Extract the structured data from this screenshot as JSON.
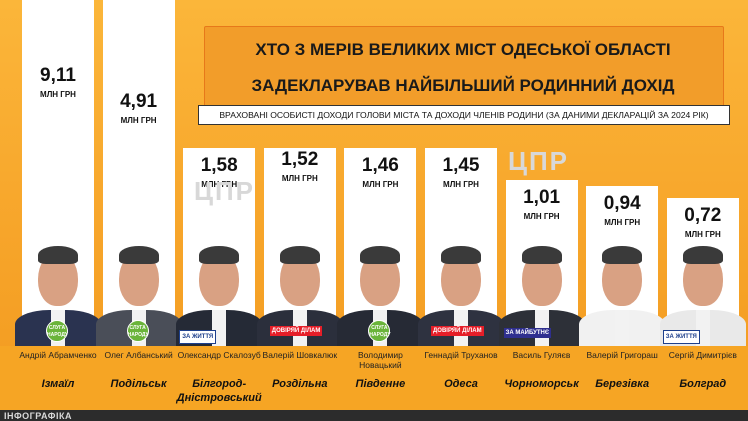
{
  "header": {
    "title_line1": "ХТО З МЕРІВ ВЕЛИКИХ МІСТ ОДЕСЬКОЇ ОБЛАСТІ",
    "title_line2": "ЗАДЕКЛАРУВАВ НАЙБІЛЬШИЙ РОДИННИЙ ДОХІД",
    "subtitle": "ВРАХОВАНІ ОСОБИСТІ ДОХОДИ ГОЛОВИ МІСТА ТА ДОХОДИ ЧЛЕНІВ РОДИНИ (ЗА ДАНИМИ ДЕКЛАРАЦІЙ ЗА 2024 РІК)"
  },
  "credit": "ІНФОГРАФІКА",
  "watermark": "ЦПР",
  "colors": {
    "bar": "#ffffff",
    "background": "#f5a623",
    "title_border": "#e7781a"
  },
  "chart_data": {
    "type": "bar",
    "unit": "МЛН ГРН",
    "categories": [
      "Ізмаїл",
      "Подільськ",
      "Білгород-Дністровський",
      "Роздільна",
      "Південне",
      "Одеса",
      "Чорноморськ",
      "Березівка",
      "Болград"
    ],
    "values": [
      9.11,
      4.91,
      1.58,
      1.52,
      1.46,
      1.45,
      1.01,
      0.94,
      0.72
    ],
    "value_labels": [
      "9,11",
      "4,91",
      "1,58",
      "1,52",
      "1,46",
      "1,45",
      "1,01",
      "0,94",
      "0,72"
    ]
  },
  "mayors": [
    {
      "name": "Андрій Абрамченко",
      "city": "Ізмаїл",
      "badge": "green",
      "badge_text": "СЛУГА НАРОДУ",
      "suit": "#2a3350"
    },
    {
      "name": "Олег Албанський",
      "city": "Подільськ",
      "badge": "green",
      "badge_text": "СЛУГА НАРОДУ",
      "suit": "#4a4e58"
    },
    {
      "name": "Олександр Скалозуб",
      "city": "Білгород-Дністровський",
      "badge": "zj",
      "badge_text": "ЗА ЖИТТЯ",
      "suit": "#252a36"
    },
    {
      "name": "Валерій Шовкалюк",
      "city": "Роздільна",
      "badge": "dov",
      "badge_text": "ДОВІРЯЙ ДІЛАМ",
      "suit": "#2b2f3c"
    },
    {
      "name": "Володимир Новацький",
      "city": "Південне",
      "badge": "green",
      "badge_text": "СЛУГА НАРОДУ",
      "suit": "#262a35"
    },
    {
      "name": "Геннадій Труханов",
      "city": "Одеса",
      "badge": "dov",
      "badge_text": "ДОВІРЯЙ ДІЛАМ",
      "suit": "#2e3240"
    },
    {
      "name": "Василь Гуляєв",
      "city": "Чорноморськ",
      "badge": "mb",
      "badge_text": "ЗА МАЙБУТНЄ",
      "suit": "#2d3038"
    },
    {
      "name": "Валерій Григораш",
      "city": "Березівка",
      "badge": "none",
      "badge_text": "",
      "suit": "#f1f1f1"
    },
    {
      "name": "Сергій Димитрієв",
      "city": "Болград",
      "badge": "zj",
      "badge_text": "ЗА ЖИТТЯ",
      "suit": "#e9e9e9"
    }
  ]
}
